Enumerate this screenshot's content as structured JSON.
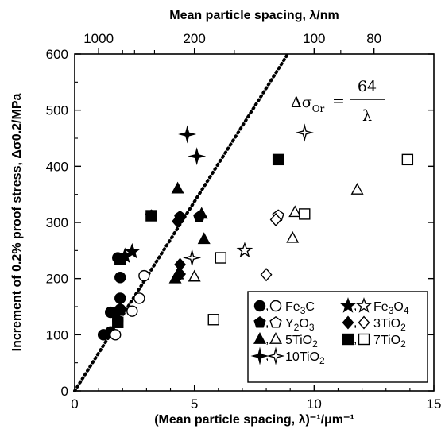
{
  "chart_data": {
    "type": "scatter",
    "xlabel": "(Mean particle spacing, λ)⁻¹/μm⁻¹",
    "top_xlabel": "Mean particle spacing, λ/nm",
    "ylabel": "Increment of 0.2% proof stress, Δσ0.2/MPa",
    "xlim": [
      0,
      15
    ],
    "ylim": [
      0,
      600
    ],
    "x_ticks": [
      0,
      5,
      10,
      15
    ],
    "y_ticks": [
      0,
      100,
      200,
      300,
      400,
      500,
      600
    ],
    "top_ticks": [
      {
        "label": "1000",
        "lambda_nm": 1000
      },
      {
        "label": "200",
        "lambda_nm": 200
      },
      {
        "label": "100",
        "lambda_nm": 100
      },
      {
        "label": "80",
        "lambda_nm": 80
      }
    ],
    "top_minor_ticks_nm": [
      500,
      400,
      300,
      150,
      90
    ],
    "equation": {
      "lhs": "Δσ",
      "sub": "Or",
      "equals": "=",
      "numerator": "64",
      "denominator": "λ"
    },
    "line": {
      "slope": 64,
      "style": "dotted"
    },
    "series": [
      {
        "name": "Fe3C",
        "marker": "circle",
        "filled": true,
        "x": [
          1.2,
          1.5,
          1.7,
          1.8,
          1.9,
          1.9,
          1.9,
          1.8,
          1.5
        ],
        "y": [
          100,
          140,
          140,
          125,
          145,
          165,
          202,
          237,
          105
        ]
      },
      {
        "name": "Fe3C",
        "marker": "circle",
        "filled": false,
        "x": [
          1.7,
          2.4,
          2.7,
          2.9
        ],
        "y": [
          100,
          142,
          165,
          205
        ]
      },
      {
        "name": "Fe3O4",
        "marker": "star",
        "filled": true,
        "x": [
          2.1,
          2.4
        ],
        "y": [
          240,
          248
        ]
      },
      {
        "name": "Fe3O4",
        "marker": "star",
        "filled": false,
        "x": [
          7.1
        ],
        "y": [
          250
        ]
      },
      {
        "name": "Y2O3",
        "marker": "pentagon",
        "filled": true,
        "x": [
          3.2,
          4.4,
          5.2
        ],
        "y": [
          312,
          310,
          310
        ]
      },
      {
        "name": "Y2O3",
        "marker": "pentagon",
        "filled": false,
        "x": [
          8.5
        ],
        "y": [
          312
        ]
      },
      {
        "name": "3TiO2",
        "marker": "diamond",
        "filled": true,
        "x": [
          4.3,
          4.4,
          4.4
        ],
        "y": [
          302,
          208,
          225
        ]
      },
      {
        "name": "3TiO2",
        "marker": "diamond",
        "filled": false,
        "x": [
          8.0,
          8.4
        ],
        "y": [
          207,
          305
        ]
      },
      {
        "name": "5TiO2",
        "marker": "triangle",
        "filled": true,
        "x": [
          4.2,
          4.3,
          4.3,
          5.3,
          5.4
        ],
        "y": [
          200,
          207,
          360,
          315,
          270
        ]
      },
      {
        "name": "5TiO2",
        "marker": "triangle",
        "filled": false,
        "x": [
          5.0,
          9.1,
          9.2,
          11.8
        ],
        "y": [
          203,
          272,
          318,
          358
        ]
      },
      {
        "name": "7TiO2",
        "marker": "square",
        "filled": true,
        "x": [
          1.8,
          1.9,
          3.2,
          8.5
        ],
        "y": [
          122,
          235,
          312,
          412
        ]
      },
      {
        "name": "7TiO2",
        "marker": "square",
        "filled": false,
        "x": [
          5.8,
          6.1,
          9.6,
          13.9
        ],
        "y": [
          127,
          237,
          315,
          412
        ]
      },
      {
        "name": "10TiO2",
        "marker": "star4",
        "filled": true,
        "x": [
          4.7,
          5.1
        ],
        "y": [
          457,
          418
        ]
      },
      {
        "name": "10TiO2",
        "marker": "star4",
        "filled": false,
        "x": [
          4.9,
          9.6
        ],
        "y": [
          237,
          460
        ]
      }
    ],
    "legend": {
      "placement": "bottom-right",
      "entries": [
        {
          "label": "Fe3C",
          "filled_marker": "circle",
          "open_marker": "circle"
        },
        {
          "label": "Fe3O4",
          "filled_marker": "star",
          "open_marker": "star"
        },
        {
          "label": "Y2O3",
          "filled_marker": "pentagon",
          "open_marker": "pentagon"
        },
        {
          "label": "3TiO2",
          "filled_marker": "diamond",
          "open_marker": "diamond"
        },
        {
          "label": "5TiO2",
          "filled_marker": "triangle",
          "open_marker": "triangle"
        },
        {
          "label": "7TiO2",
          "filled_marker": "square",
          "open_marker": "square"
        },
        {
          "label": "10TiO2",
          "filled_marker": "star4",
          "open_marker": "star4"
        }
      ]
    },
    "grid": false
  }
}
